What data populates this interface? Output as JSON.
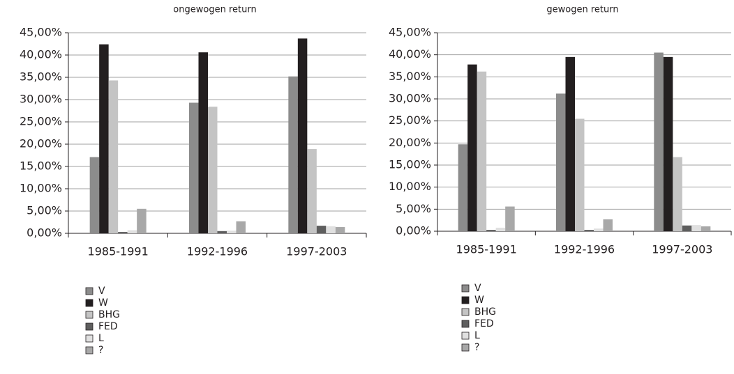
{
  "chart_data": [
    {
      "type": "bar",
      "title": "ongewogen return",
      "categories": [
        "1985-1991",
        "1992-1996",
        "1997-2003"
      ],
      "series": [
        {
          "name": "V",
          "color": "#8c8c8c",
          "values": [
            17.1,
            29.3,
            35.2
          ]
        },
        {
          "name": "W",
          "color": "#231f20",
          "values": [
            42.4,
            40.6,
            43.7
          ]
        },
        {
          "name": "BHG",
          "color": "#c4c4c4",
          "values": [
            34.3,
            28.4,
            18.9
          ]
        },
        {
          "name": "FED",
          "color": "#5e5e5e",
          "values": [
            0.3,
            0.5,
            1.7
          ]
        },
        {
          "name": "L",
          "color": "#e0e0e0",
          "values": [
            0.7,
            0.6,
            1.6
          ]
        },
        {
          "name": "?",
          "color": "#a8a8a8",
          "values": [
            5.5,
            2.7,
            1.4
          ]
        }
      ],
      "ylim": [
        0,
        45
      ],
      "yticks": [
        {
          "value": 0,
          "label": "0,00%"
        },
        {
          "value": 5,
          "label": "5,00%"
        },
        {
          "value": 10,
          "label": "10,00%"
        },
        {
          "value": 15,
          "label": "15,00%"
        },
        {
          "value": 20,
          "label": "20,00%"
        },
        {
          "value": 25,
          "label": "25,00%"
        },
        {
          "value": 30,
          "label": "30,00%"
        },
        {
          "value": 35,
          "label": "35,00%"
        },
        {
          "value": 40,
          "label": "40,00%"
        },
        {
          "value": 45,
          "label": "45,00%"
        }
      ],
      "grid": true
    },
    {
      "type": "bar",
      "title": "gewogen return",
      "categories": [
        "1985-1991",
        "1992-1996",
        "1997-2003"
      ],
      "series": [
        {
          "name": "V",
          "color": "#8c8c8c",
          "values": [
            19.7,
            31.2,
            40.5
          ]
        },
        {
          "name": "W",
          "color": "#231f20",
          "values": [
            37.8,
            39.5,
            39.5
          ]
        },
        {
          "name": "BHG",
          "color": "#c4c4c4",
          "values": [
            36.2,
            25.5,
            16.8
          ]
        },
        {
          "name": "FED",
          "color": "#5e5e5e",
          "values": [
            0.3,
            0.3,
            1.3
          ]
        },
        {
          "name": "L",
          "color": "#e0e0e0",
          "values": [
            0.8,
            0.6,
            1.4
          ]
        },
        {
          "name": "?",
          "color": "#a8a8a8",
          "values": [
            5.6,
            2.7,
            1.1
          ]
        }
      ],
      "ylim": [
        0,
        45
      ],
      "yticks": [
        {
          "value": 0,
          "label": "0,00%"
        },
        {
          "value": 5,
          "label": "5,00%"
        },
        {
          "value": 10,
          "label": "10,00%"
        },
        {
          "value": 15,
          "label": "15,00%"
        },
        {
          "value": 20,
          "label": "20,00%"
        },
        {
          "value": 25,
          "label": "25,00%"
        },
        {
          "value": 30,
          "label": "30,00%"
        },
        {
          "value": 35,
          "label": "35,00%"
        },
        {
          "value": 40,
          "label": "40,00%"
        },
        {
          "value": 45,
          "label": "45,00%"
        }
      ],
      "grid": true
    }
  ]
}
